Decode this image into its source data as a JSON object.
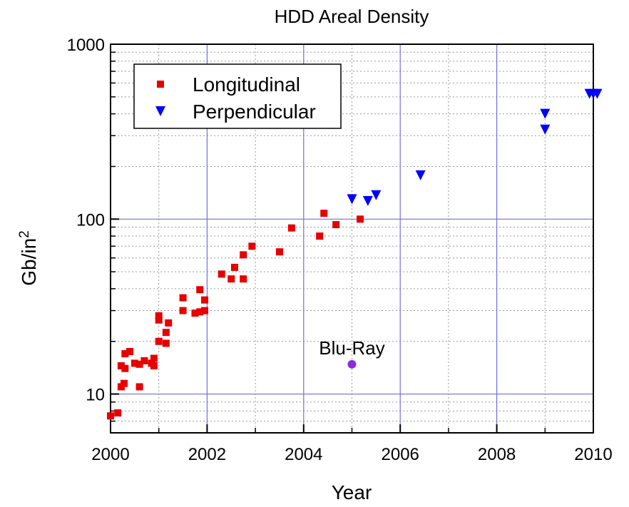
{
  "chart_data": {
    "type": "scatter",
    "title": "HDD Areal Density",
    "xlabel": "Year",
    "ylabel_base": "Gb/in",
    "ylabel_sup": "2",
    "xlim": [
      2000,
      2010
    ],
    "ylim": [
      6,
      1000
    ],
    "yscale": "log",
    "xticks": [
      2000,
      2002,
      2004,
      2006,
      2008,
      2010
    ],
    "yticks": [
      10,
      100,
      1000
    ],
    "grid": true,
    "legend_position": "top-left",
    "series": [
      {
        "name": "Longitudinal",
        "marker": "square",
        "color": "#e60000",
        "points": [
          [
            2000.0,
            7.5
          ],
          [
            2000.15,
            7.8
          ],
          [
            2000.22,
            11
          ],
          [
            2000.28,
            11.5
          ],
          [
            2000.22,
            14.5
          ],
          [
            2000.3,
            14
          ],
          [
            2000.3,
            17
          ],
          [
            2000.4,
            17.5
          ],
          [
            2000.5,
            15
          ],
          [
            2000.6,
            11
          ],
          [
            2000.6,
            14.8
          ],
          [
            2000.7,
            15.5
          ],
          [
            2000.85,
            15
          ],
          [
            2000.9,
            14.5
          ],
          [
            2000.9,
            16
          ],
          [
            2001.0,
            20
          ],
          [
            2001.0,
            26.5
          ],
          [
            2001.0,
            28
          ],
          [
            2001.15,
            19.5
          ],
          [
            2001.15,
            22.5
          ],
          [
            2001.2,
            25.5
          ],
          [
            2001.5,
            30
          ],
          [
            2001.5,
            35.5
          ],
          [
            2001.75,
            29
          ],
          [
            2001.85,
            29.5
          ],
          [
            2001.85,
            39.5
          ],
          [
            2001.95,
            30
          ],
          [
            2001.95,
            34.5
          ],
          [
            2002.3,
            48.5
          ],
          [
            2002.5,
            45.5
          ],
          [
            2002.57,
            53
          ],
          [
            2002.75,
            45.5
          ],
          [
            2002.75,
            62.5
          ],
          [
            2002.93,
            70
          ],
          [
            2003.5,
            65
          ],
          [
            2003.75,
            89
          ],
          [
            2004.33,
            80
          ],
          [
            2004.42,
            108
          ],
          [
            2004.67,
            93
          ],
          [
            2005.17,
            100
          ]
        ]
      },
      {
        "name": "Perpendicular",
        "marker": "triangle-down",
        "color": "#0000ff",
        "points": [
          [
            2005.0,
            130
          ],
          [
            2005.33,
            127
          ],
          [
            2005.5,
            137
          ],
          [
            2006.42,
            178
          ],
          [
            2009.0,
            325
          ],
          [
            2009.0,
            400
          ],
          [
            2009.92,
            520
          ],
          [
            2010.0,
            520
          ],
          [
            2010.08,
            520
          ]
        ]
      }
    ],
    "annotations": [
      {
        "label": "Blu-Ray",
        "x": 2005.0,
        "y": 14.8,
        "marker": "circle",
        "color": "#8a2be2"
      }
    ]
  }
}
